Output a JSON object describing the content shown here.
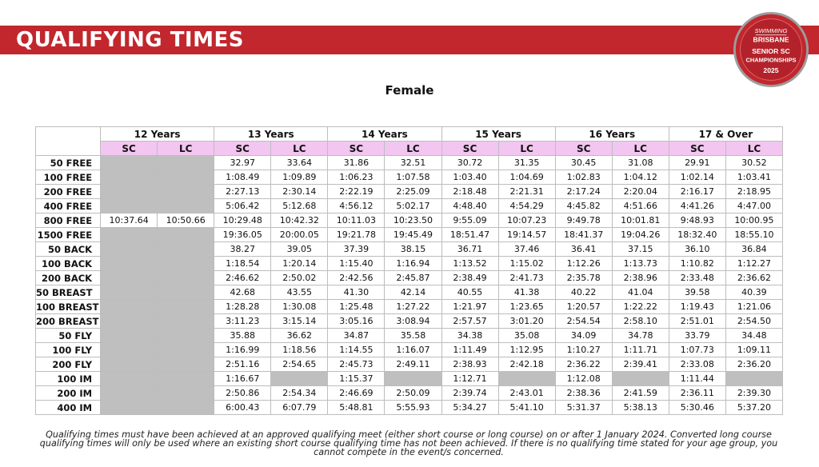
{
  "banner": {
    "title": "QUALIFYING TIMES"
  },
  "logo": {
    "line1": "SWIMMING",
    "line2": "BRISBANE",
    "line3": "SENIOR SC",
    "line4": "CHAMPIONSHIPS",
    "line5": "2025",
    "colors": {
      "ring": "#c1272d",
      "inner": "#b3222a"
    }
  },
  "subtitle": "Female",
  "colors": {
    "banner": "#c1272d",
    "course_header": "#f2c6f0",
    "not_applicable": "#bfbfbf"
  },
  "table": {
    "age_groups": [
      "12 Years",
      "13 Years",
      "14 Years",
      "15 Years",
      "16 Years",
      "17 & Over"
    ],
    "course_labels": [
      "SC",
      "LC",
      "SC",
      "LC",
      "SC",
      "LC",
      "SC",
      "LC",
      "SC",
      "LC",
      "SC",
      "LC"
    ],
    "rows": [
      {
        "event": "50 FREE",
        "cells": [
          null,
          null,
          "32.97",
          "33.64",
          "31.86",
          "32.51",
          "30.72",
          "31.35",
          "30.45",
          "31.08",
          "29.91",
          "30.52"
        ]
      },
      {
        "event": "100 FREE",
        "cells": [
          null,
          null,
          "1:08.49",
          "1:09.89",
          "1:06.23",
          "1:07.58",
          "1:03.40",
          "1:04.69",
          "1:02.83",
          "1:04.12",
          "1:02.14",
          "1:03.41"
        ]
      },
      {
        "event": "200 FREE",
        "cells": [
          null,
          null,
          "2:27.13",
          "2:30.14",
          "2:22.19",
          "2:25.09",
          "2:18.48",
          "2:21.31",
          "2:17.24",
          "2:20.04",
          "2:16.17",
          "2:18.95"
        ]
      },
      {
        "event": "400 FREE",
        "cells": [
          null,
          null,
          "5:06.42",
          "5:12.68",
          "4:56.12",
          "5:02.17",
          "4:48.40",
          "4:54.29",
          "4:45.82",
          "4:51.66",
          "4:41.26",
          "4:47.00"
        ]
      },
      {
        "event": "800 FREE",
        "cells": [
          "10:37.64",
          "10:50.66",
          "10:29.48",
          "10:42.32",
          "10:11.03",
          "10:23.50",
          "9:55.09",
          "10:07.23",
          "9:49.78",
          "10:01.81",
          "9:48.93",
          "10:00.95"
        ]
      },
      {
        "event": "1500 FREE",
        "cells": [
          null,
          null,
          "19:36.05",
          "20:00.05",
          "19:21.78",
          "19:45.49",
          "18:51.47",
          "19:14.57",
          "18:41.37",
          "19:04.26",
          "18:32.40",
          "18:55.10"
        ]
      },
      {
        "event": "50 BACK",
        "cells": [
          null,
          null,
          "38.27",
          "39.05",
          "37.39",
          "38.15",
          "36.71",
          "37.46",
          "36.41",
          "37.15",
          "36.10",
          "36.84"
        ]
      },
      {
        "event": "100 BACK",
        "cells": [
          null,
          null,
          "1:18.54",
          "1:20.14",
          "1:15.40",
          "1:16.94",
          "1:13.52",
          "1:15.02",
          "1:12.26",
          "1:13.73",
          "1:10.82",
          "1:12.27"
        ]
      },
      {
        "event": "200 BACK",
        "cells": [
          null,
          null,
          "2:46.62",
          "2:50.02",
          "2:42.56",
          "2:45.87",
          "2:38.49",
          "2:41.73",
          "2:35.78",
          "2:38.96",
          "2:33.48",
          "2:36.62"
        ]
      },
      {
        "event": "50 BREAST",
        "cells": [
          null,
          null,
          "42.68",
          "43.55",
          "41.30",
          "42.14",
          "40.55",
          "41.38",
          "40.22",
          "41.04",
          "39.58",
          "40.39"
        ]
      },
      {
        "event": "100 BREAST",
        "cells": [
          null,
          null,
          "1:28.28",
          "1:30.08",
          "1:25.48",
          "1:27.22",
          "1:21.97",
          "1:23.65",
          "1:20.57",
          "1:22.22",
          "1:19.43",
          "1:21.06"
        ]
      },
      {
        "event": "200 BREAST",
        "cells": [
          null,
          null,
          "3:11.23",
          "3:15.14",
          "3:05.16",
          "3:08.94",
          "2:57.57",
          "3:01.20",
          "2:54.54",
          "2:58.10",
          "2:51.01",
          "2:54.50"
        ]
      },
      {
        "event": "50 FLY",
        "cells": [
          null,
          null,
          "35.88",
          "36.62",
          "34.87",
          "35.58",
          "34.38",
          "35.08",
          "34.09",
          "34.78",
          "33.79",
          "34.48"
        ]
      },
      {
        "event": "100 FLY",
        "cells": [
          null,
          null,
          "1:16.99",
          "1:18.56",
          "1:14.55",
          "1:16.07",
          "1:11.49",
          "1:12.95",
          "1:10.27",
          "1:11.71",
          "1:07.73",
          "1:09.11"
        ]
      },
      {
        "event": "200 FLY",
        "cells": [
          null,
          null,
          "2:51.16",
          "2:54.65",
          "2:45.73",
          "2:49.11",
          "2:38.93",
          "2:42.18",
          "2:36.22",
          "2:39.41",
          "2:33.08",
          "2:36.20"
        ]
      },
      {
        "event": "100 IM",
        "cells": [
          null,
          null,
          "1:16.67",
          null,
          "1:15.37",
          null,
          "1:12.71",
          null,
          "1:12.08",
          null,
          "1:11.44",
          null
        ]
      },
      {
        "event": "200 IM",
        "cells": [
          null,
          null,
          "2:50.86",
          "2:54.34",
          "2:46.69",
          "2:50.09",
          "2:39.74",
          "2:43.01",
          "2:38.36",
          "2:41.59",
          "2:36.11",
          "2:39.30"
        ]
      },
      {
        "event": "400 IM",
        "cells": [
          null,
          null,
          "6:00.43",
          "6:07.79",
          "5:48.81",
          "5:55.93",
          "5:34.27",
          "5:41.10",
          "5:31.37",
          "5:38.13",
          "5:30.46",
          "5:37.20"
        ]
      }
    ]
  },
  "footnote": "Qualifying times must have been achieved at an approved qualifying meet (either short course or long course) on or after 1 January 2024. Converted long course qualifying times will only be used where an existing short course qualifying time has not been achieved.  If there is no qualifying time stated for your age group, you cannot compete in the event/s concerned."
}
